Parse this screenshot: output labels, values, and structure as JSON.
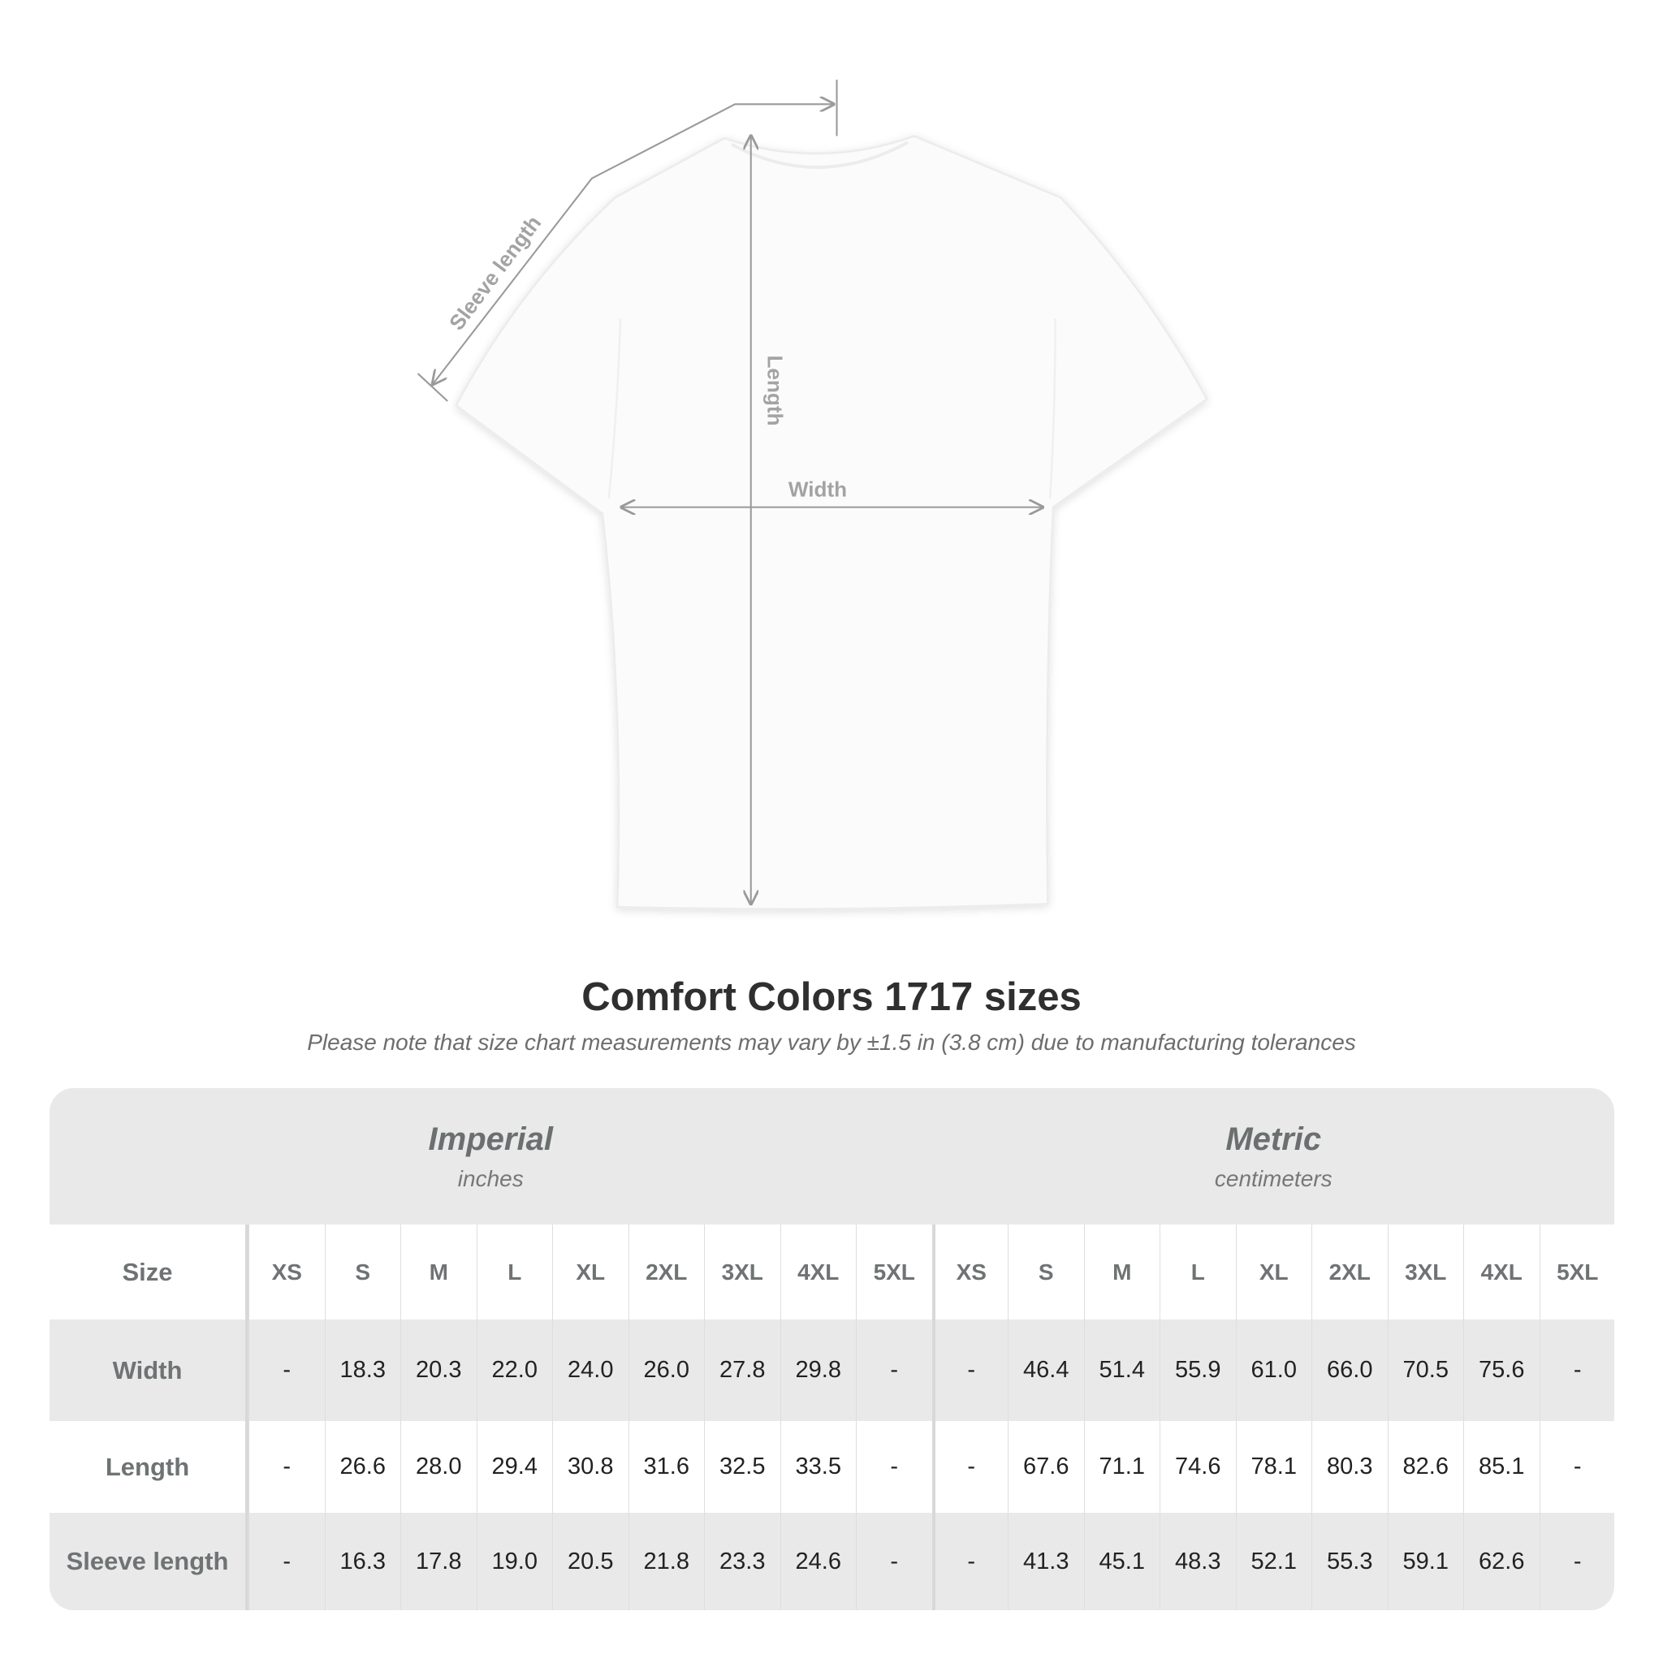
{
  "diagram": {
    "labels": {
      "sleeve": "Sleeve length",
      "length": "Length",
      "width": "Width"
    },
    "line_color": "#9a9a9a"
  },
  "title": "Comfort Colors 1717 sizes",
  "subtitle": "Please note that size chart measurements may vary by ±1.5 in (3.8 cm) due to manufacturing tolerances",
  "table": {
    "imperial": {
      "label": "Imperial",
      "unit": "inches"
    },
    "metric": {
      "label": "Metric",
      "unit": "centimeters"
    },
    "size_label": "Size",
    "sizes": [
      "XS",
      "S",
      "M",
      "L",
      "XL",
      "2XL",
      "3XL",
      "4XL",
      "5XL"
    ],
    "rows": [
      {
        "label": "Width",
        "imperial": [
          "-",
          "18.3",
          "20.3",
          "22.0",
          "24.0",
          "26.0",
          "27.8",
          "29.8",
          "-"
        ],
        "metric": [
          "-",
          "46.4",
          "51.4",
          "55.9",
          "61.0",
          "66.0",
          "70.5",
          "75.6",
          "-"
        ]
      },
      {
        "label": "Length",
        "imperial": [
          "-",
          "26.6",
          "28.0",
          "29.4",
          "30.8",
          "31.6",
          "32.5",
          "33.5",
          "-"
        ],
        "metric": [
          "-",
          "67.6",
          "71.1",
          "74.6",
          "78.1",
          "80.3",
          "82.6",
          "85.1",
          "-"
        ]
      },
      {
        "label": "Sleeve length",
        "imperial": [
          "-",
          "16.3",
          "17.8",
          "19.0",
          "20.5",
          "21.8",
          "23.3",
          "24.6",
          "-"
        ],
        "metric": [
          "-",
          "41.3",
          "45.1",
          "48.3",
          "52.1",
          "55.3",
          "59.1",
          "62.6",
          "-"
        ]
      }
    ]
  }
}
